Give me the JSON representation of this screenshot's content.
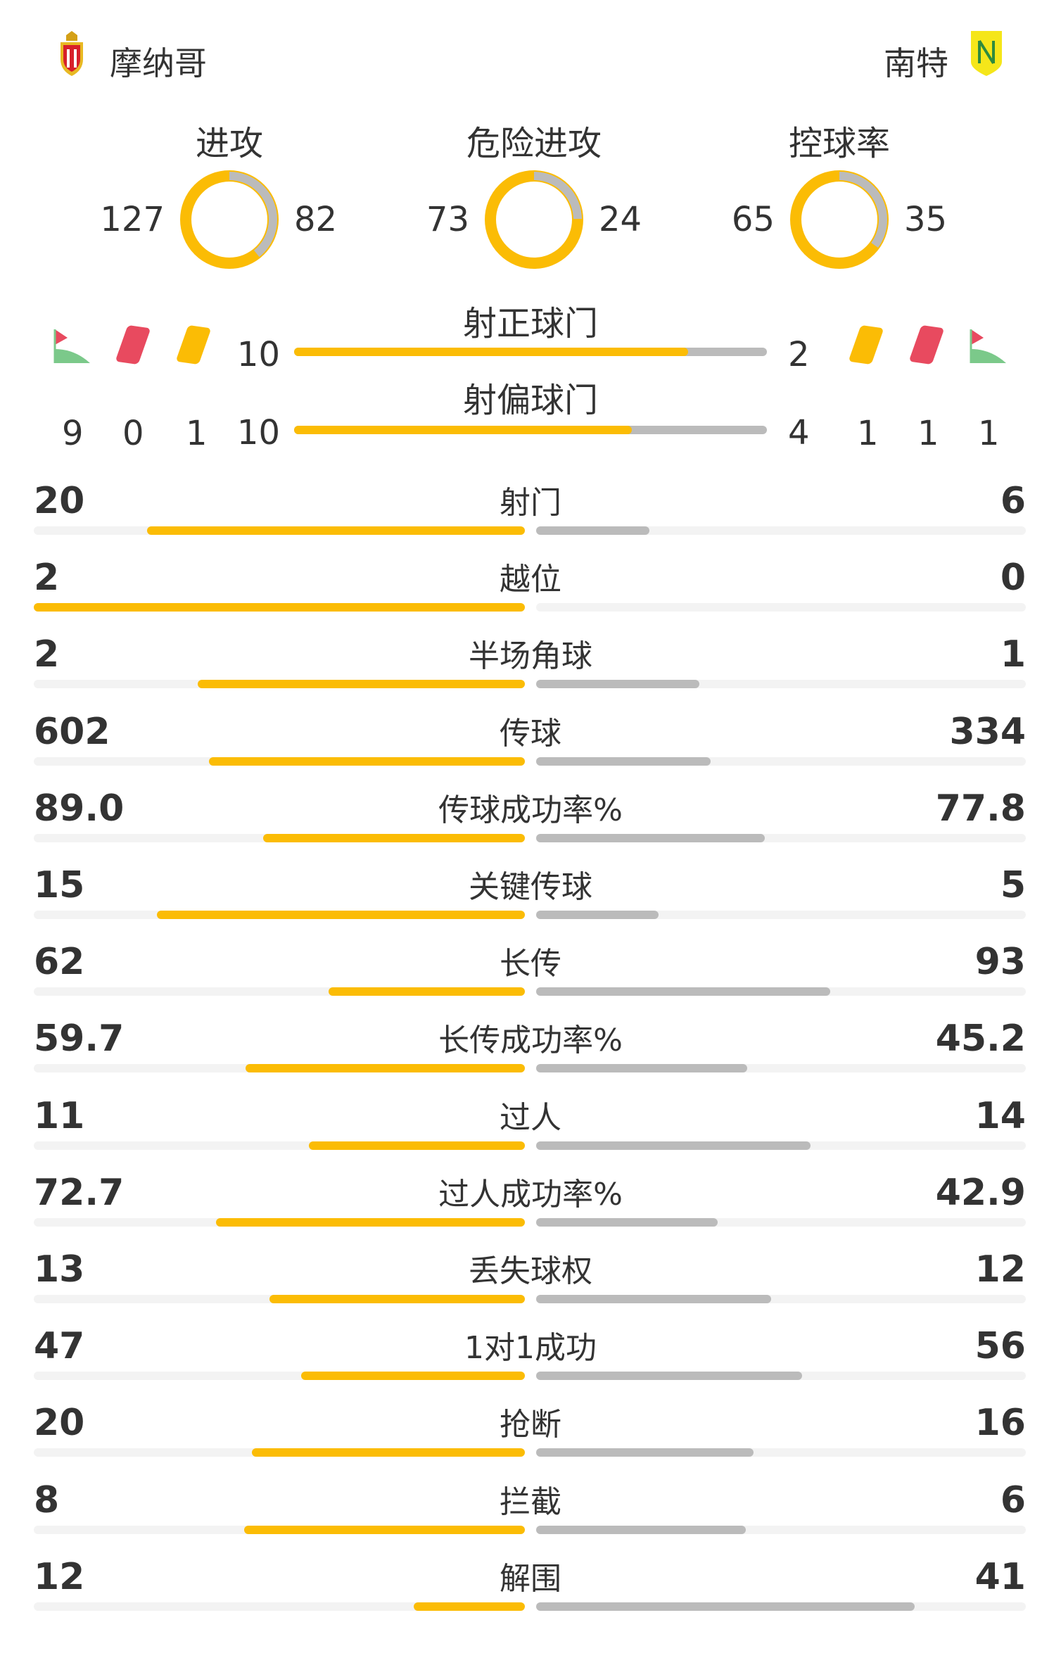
{
  "home": {
    "name": "摩纳哥",
    "logo_text": "AS MONACO"
  },
  "away": {
    "name": "南特",
    "logo_text": "FC NANTES"
  },
  "colors": {
    "home": "#FBBC05",
    "away": "#BBBBBB",
    "track": "#F3F3F3",
    "red_card": "#E84A5F",
    "yellow_card": "#FBBC05"
  },
  "donuts": [
    {
      "label": "进攻",
      "home": 127,
      "away": 82
    },
    {
      "label": "危险进攻",
      "home": 73,
      "away": 24
    },
    {
      "label": "控球率",
      "home": 65,
      "away": 35
    }
  ],
  "shots_bars": [
    {
      "label": "射正球门",
      "home": 10,
      "away": 2
    },
    {
      "label": "射偏球门",
      "home": 10,
      "away": 4
    }
  ],
  "events": {
    "home": {
      "corners": 9,
      "red_cards": 0,
      "yellow_cards": 1
    },
    "away": {
      "yellow_cards": 1,
      "red_cards": 1,
      "corners": 1
    }
  },
  "stats": [
    {
      "label": "射门",
      "home": "20",
      "away": "6"
    },
    {
      "label": "越位",
      "home": "2",
      "away": "0"
    },
    {
      "label": "半场角球",
      "home": "2",
      "away": "1"
    },
    {
      "label": "传球",
      "home": "602",
      "away": "334"
    },
    {
      "label": "传球成功率%",
      "home": "89.0",
      "away": "77.8"
    },
    {
      "label": "关键传球",
      "home": "15",
      "away": "5"
    },
    {
      "label": "长传",
      "home": "62",
      "away": "93"
    },
    {
      "label": "长传成功率%",
      "home": "59.7",
      "away": "45.2"
    },
    {
      "label": "过人",
      "home": "11",
      "away": "14"
    },
    {
      "label": "过人成功率%",
      "home": "72.7",
      "away": "42.9"
    },
    {
      "label": "丢失球权",
      "home": "13",
      "away": "12"
    },
    {
      "label": "1对1成功",
      "home": "47",
      "away": "56"
    },
    {
      "label": "抢断",
      "home": "20",
      "away": "16"
    },
    {
      "label": "拦截",
      "home": "8",
      "away": "6"
    },
    {
      "label": "解围",
      "home": "12",
      "away": "41"
    }
  ]
}
